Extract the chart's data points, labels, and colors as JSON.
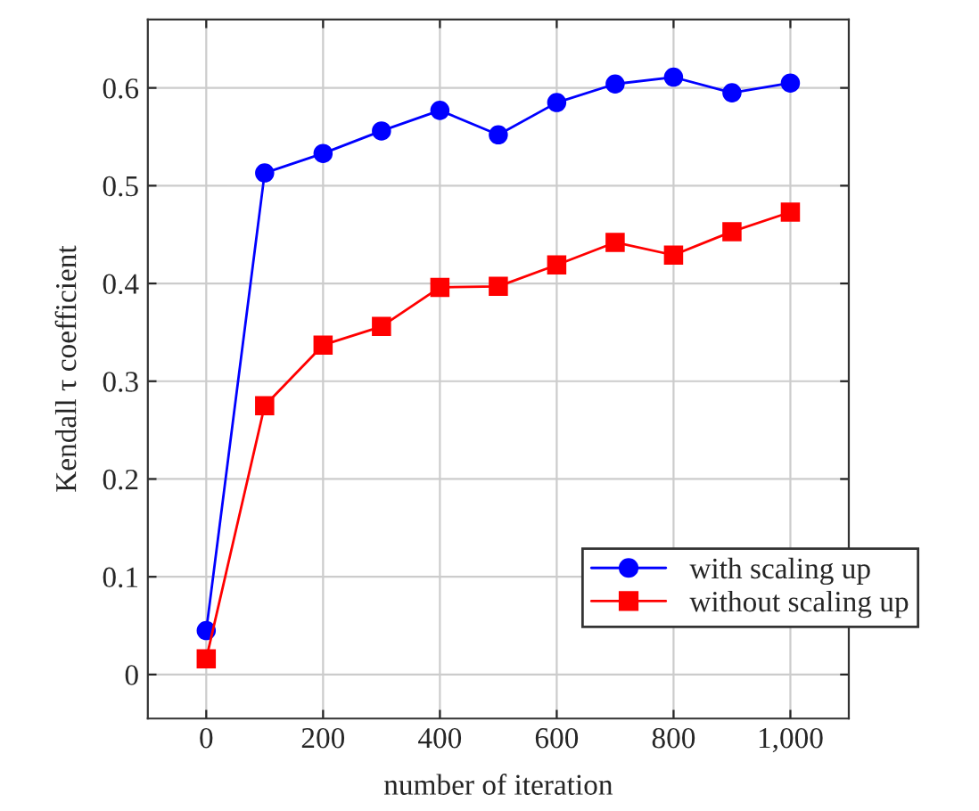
{
  "chart_data": {
    "type": "line",
    "xlabel": "number of iteration",
    "ylabel": "Kendall τ coefficient",
    "x": [
      0,
      100,
      200,
      300,
      400,
      500,
      600,
      700,
      800,
      900,
      1000
    ],
    "series": [
      {
        "name": "with scaling up",
        "color": "#0000ff",
        "marker": "circle",
        "values": [
          0.045,
          0.513,
          0.533,
          0.556,
          0.577,
          0.552,
          0.585,
          0.604,
          0.611,
          0.595,
          0.605
        ]
      },
      {
        "name": "without scaling up",
        "color": "#ff0000",
        "marker": "square",
        "values": [
          0.016,
          0.275,
          0.337,
          0.356,
          0.396,
          0.397,
          0.419,
          0.442,
          0.429,
          0.453,
          0.473
        ]
      }
    ],
    "xlim": [
      -100,
      1100
    ],
    "xticks": [
      0,
      200,
      400,
      600,
      800,
      {
        "value": 1000,
        "label": "1,000"
      }
    ],
    "ylim": [
      -0.045,
      0.67
    ],
    "yticks": [
      0,
      0.1,
      0.2,
      0.3,
      0.4,
      0.5,
      0.6
    ],
    "grid": true,
    "legend": "bottom right",
    "line_style": "solid"
  }
}
